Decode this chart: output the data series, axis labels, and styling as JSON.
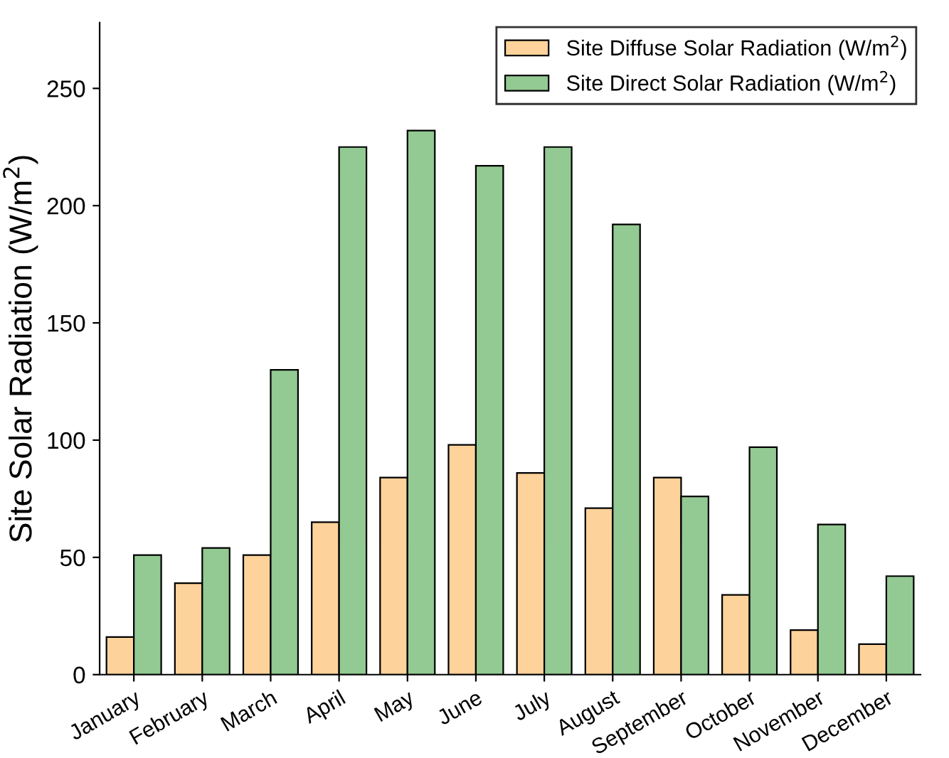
{
  "chart_data": {
    "type": "bar",
    "ylabel": "Site Solar Radiation (W/m$^{2}$)",
    "categories": [
      "January",
      "February",
      "March",
      "April",
      "May",
      "June",
      "July",
      "August",
      "September",
      "October",
      "November",
      "December"
    ],
    "series": [
      {
        "name": "Site Diffuse Solar Radiation (W/m$^{2}$)",
        "color": "#fdd29b",
        "values": [
          16,
          39,
          51,
          65,
          84,
          98,
          86,
          71,
          84,
          34,
          19,
          13
        ]
      },
      {
        "name": "Site Direct Solar Radiation (W/m$^{2}$)",
        "color": "#93c993",
        "values": [
          51,
          54,
          130,
          225,
          232,
          217,
          225,
          192,
          76,
          97,
          64,
          42
        ]
      }
    ],
    "ylim": [
      0,
      278
    ],
    "yticks": [
      0,
      50,
      100,
      150,
      200,
      250
    ],
    "grid": false,
    "legend": "top right"
  }
}
